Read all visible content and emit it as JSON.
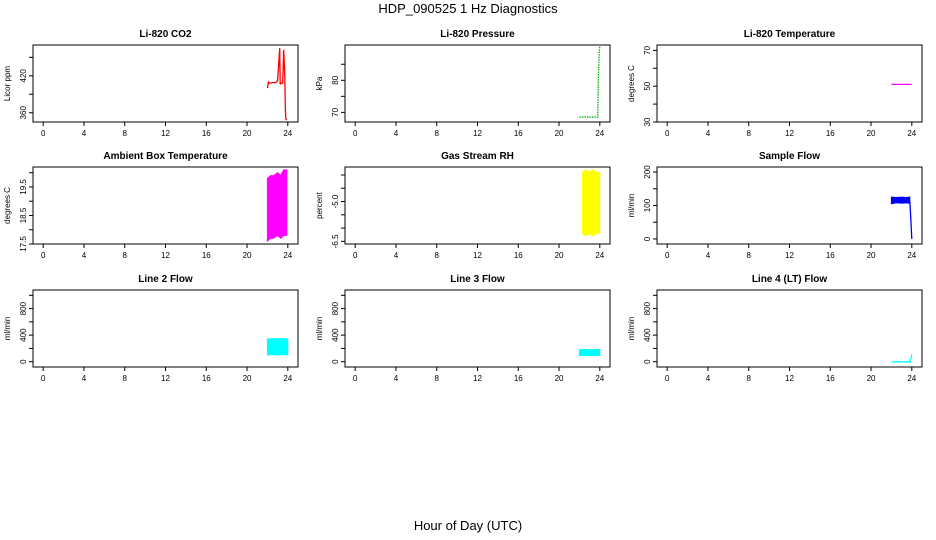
{
  "figure": {
    "title": "HDP_090525  1 Hz Diagnostics",
    "xlabel": "Hour of Day (UTC)",
    "colors": {
      "co2": "#ff0000",
      "pressure": "#00b000",
      "temperature": "#ff00ff",
      "ambient": "#ff00ff",
      "rh": "#ffff00",
      "sample_flow": "#0000ff",
      "line2": "#00ffff",
      "line3": "#00ffff",
      "line4": "#00ffff"
    }
  },
  "chart_data": [
    {
      "id": "co2",
      "type": "line",
      "title": "Li-820 CO2",
      "ylabel": "Licor ppm",
      "xlim": [
        -1,
        25
      ],
      "ylim": [
        345,
        470
      ],
      "xticks": [
        0,
        4,
        8,
        12,
        16,
        20,
        24
      ],
      "yticks": [
        360,
        390,
        420,
        450
      ],
      "ytick_labels": [
        "360",
        "",
        "420",
        ""
      ],
      "series": [
        {
          "name": "CO2",
          "color": "#ff0000",
          "style": "line",
          "x": [
            22.0,
            22.1,
            22.2,
            22.5,
            22.8,
            23.0,
            23.2,
            23.25,
            23.3,
            23.5,
            23.6,
            23.7,
            23.75,
            23.8,
            23.9
          ],
          "y": [
            400,
            410,
            408,
            409,
            409,
            412,
            465,
            406,
            408,
            408,
            462,
            420,
            370,
            350,
            348
          ]
        }
      ]
    },
    {
      "id": "pressure",
      "type": "line",
      "title": "Li-820 Pressure",
      "ylabel": "kPa",
      "xlim": [
        -1,
        25
      ],
      "ylim": [
        67,
        91
      ],
      "xticks": [
        0,
        4,
        8,
        12,
        16,
        20,
        24
      ],
      "yticks": [
        70,
        75,
        80,
        85
      ],
      "ytick_labels": [
        "70",
        "",
        "80",
        ""
      ],
      "series": [
        {
          "name": "Pressure",
          "color": "#00b000",
          "style": "dotted",
          "x": [
            22.0,
            22.5,
            23.0,
            23.5,
            23.8,
            23.85,
            23.9,
            23.95,
            24.0
          ],
          "y": [
            68.5,
            68.6,
            68.5,
            68.6,
            68.5,
            80,
            85,
            89,
            90.5
          ]
        }
      ]
    },
    {
      "id": "temperature",
      "type": "line",
      "title": "Li-820 Temperature",
      "ylabel": "degrees C",
      "xlim": [
        -1,
        25
      ],
      "ylim": [
        30,
        73
      ],
      "xticks": [
        0,
        4,
        8,
        12,
        16,
        20,
        24
      ],
      "yticks": [
        30,
        40,
        50,
        60,
        70
      ],
      "ytick_labels": [
        "30",
        "",
        "50",
        "",
        "70"
      ],
      "series": [
        {
          "name": "Temperature",
          "color": "#ff00ff",
          "style": "line",
          "x": [
            22.0,
            24.0
          ],
          "y": [
            51,
            51
          ]
        }
      ]
    },
    {
      "id": "ambient",
      "type": "area",
      "title": "Ambient Box Temperature",
      "ylabel": "degrees C",
      "xlim": [
        -1,
        25
      ],
      "ylim": [
        17.5,
        20.2
      ],
      "xticks": [
        0,
        4,
        8,
        12,
        16,
        20,
        24
      ],
      "yticks": [
        17.5,
        18.0,
        18.5,
        19.0,
        19.5,
        20.0
      ],
      "ytick_labels": [
        "17.5",
        "",
        "18.5",
        "",
        "19.5",
        ""
      ],
      "series": [
        {
          "name": "Ambient",
          "color": "#ff00ff",
          "style": "band",
          "x": [
            22.0,
            22.3,
            22.6,
            23.0,
            23.3,
            23.6,
            23.9
          ],
          "low": [
            17.6,
            17.7,
            17.7,
            17.8,
            17.7,
            17.8,
            17.8
          ],
          "high": [
            19.8,
            19.9,
            19.9,
            20.0,
            19.9,
            20.1,
            20.1
          ]
        }
      ]
    },
    {
      "id": "rh",
      "type": "area",
      "title": "Gas Stream RH",
      "ylabel": "percent",
      "xlim": [
        -1,
        25
      ],
      "ylim": [
        -6.6,
        -3.7
      ],
      "xticks": [
        0,
        4,
        8,
        12,
        16,
        20,
        24
      ],
      "yticks": [
        -6.5,
        -6.0,
        -5.5,
        -5.0,
        -4.5,
        -4.0
      ],
      "ytick_labels": [
        "-6.5",
        "",
        "",
        "-5.0",
        "",
        ""
      ],
      "series": [
        {
          "name": "RH",
          "color": "#ffff00",
          "style": "band",
          "x": [
            22.3,
            22.6,
            23.0,
            23.3,
            23.6,
            24.0
          ],
          "low": [
            -6.2,
            -6.3,
            -6.2,
            -6.3,
            -6.2,
            -6.2
          ],
          "high": [
            -3.9,
            -3.8,
            -3.9,
            -3.8,
            -3.9,
            -3.9
          ]
        }
      ]
    },
    {
      "id": "sample_flow",
      "type": "line",
      "title": "Sample Flow",
      "ylabel": "ml/min",
      "xlim": [
        -1,
        25
      ],
      "ylim": [
        -15,
        215
      ],
      "xticks": [
        0,
        4,
        8,
        12,
        16,
        20,
        24
      ],
      "yticks": [
        0,
        50,
        100,
        150,
        200
      ],
      "ytick_labels": [
        "0",
        "",
        "100",
        "",
        "200"
      ],
      "series": [
        {
          "name": "Sample Flow",
          "color": "#0000ff",
          "style": "band",
          "x": [
            22.0,
            22.5,
            23.0,
            23.5,
            23.8
          ],
          "low": [
            105,
            108,
            107,
            108,
            106
          ],
          "high": [
            125,
            124,
            125,
            124,
            125
          ]
        },
        {
          "name": "Sample Flow drop",
          "color": "#0000ff",
          "style": "line",
          "x": [
            23.8,
            23.9,
            24.0
          ],
          "y": [
            115,
            60,
            0
          ]
        }
      ]
    },
    {
      "id": "line2",
      "type": "area",
      "title": "Line 2 Flow",
      "ylabel": "ml/min",
      "xlim": [
        -1,
        25
      ],
      "ylim": [
        -80,
        1080
      ],
      "xticks": [
        0,
        4,
        8,
        12,
        16,
        20,
        24
      ],
      "yticks": [
        0,
        200,
        400,
        600,
        800,
        1000
      ],
      "ytick_labels": [
        "0",
        "",
        "400",
        "",
        "800",
        ""
      ],
      "series": [
        {
          "name": "Line 2",
          "color": "#00ffff",
          "style": "band",
          "x": [
            22.0,
            22.5,
            23.0,
            23.5,
            24.0
          ],
          "low": [
            100,
            110,
            100,
            110,
            100
          ],
          "high": [
            340,
            350,
            345,
            350,
            340
          ]
        }
      ]
    },
    {
      "id": "line3",
      "type": "area",
      "title": "Line 3 Flow",
      "ylabel": "ml/min",
      "xlim": [
        -1,
        25
      ],
      "ylim": [
        -80,
        1080
      ],
      "xticks": [
        0,
        4,
        8,
        12,
        16,
        20,
        24
      ],
      "yticks": [
        0,
        200,
        400,
        600,
        800,
        1000
      ],
      "ytick_labels": [
        "0",
        "",
        "400",
        "",
        "800",
        ""
      ],
      "series": [
        {
          "name": "Line 3",
          "color": "#00ffff",
          "style": "band",
          "x": [
            22.0,
            22.5,
            23.0,
            23.5,
            24.0
          ],
          "low": [
            90,
            95,
            90,
            95,
            90
          ],
          "high": [
            180,
            185,
            180,
            185,
            180
          ]
        }
      ]
    },
    {
      "id": "line4",
      "type": "line",
      "title": "Line 4 (LT) Flow",
      "ylabel": "ml/min",
      "xlim": [
        -1,
        25
      ],
      "ylim": [
        -80,
        1080
      ],
      "xticks": [
        0,
        4,
        8,
        12,
        16,
        20,
        24
      ],
      "yticks": [
        0,
        200,
        400,
        600,
        800,
        1000
      ],
      "ytick_labels": [
        "0",
        "",
        "400",
        "",
        "800",
        ""
      ],
      "series": [
        {
          "name": "Line 4",
          "color": "#00ffff",
          "style": "line",
          "x": [
            22.0,
            22.5,
            23.0,
            23.5,
            23.8,
            23.9,
            24.0
          ],
          "y": [
            -5,
            0,
            -5,
            0,
            -5,
            40,
            110
          ]
        }
      ]
    }
  ]
}
